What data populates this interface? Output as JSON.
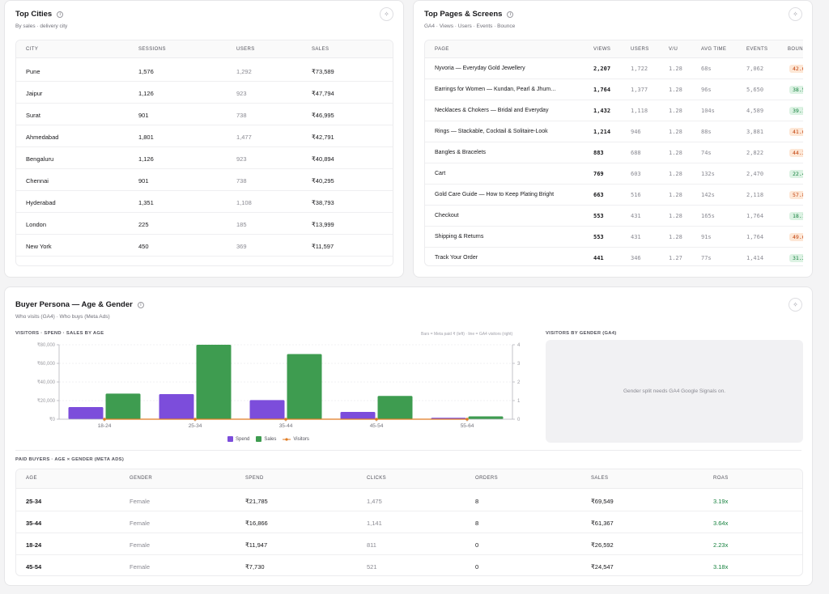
{
  "top_cities": {
    "title": "Top Cities",
    "subtitle": "By sales · delivery city",
    "columns": [
      "CITY",
      "SESSIONS",
      "USERS",
      "SALES"
    ],
    "rows": [
      {
        "city": "Pune",
        "sessions": "1,576",
        "users": "1,292",
        "sales": "₹73,589"
      },
      {
        "city": "Jaipur",
        "sessions": "1,126",
        "users": "923",
        "sales": "₹47,794"
      },
      {
        "city": "Surat",
        "sessions": "901",
        "users": "738",
        "sales": "₹46,995"
      },
      {
        "city": "Ahmedabad",
        "sessions": "1,801",
        "users": "1,477",
        "sales": "₹42,791"
      },
      {
        "city": "Bengaluru",
        "sessions": "1,126",
        "users": "923",
        "sales": "₹40,894"
      },
      {
        "city": "Chennai",
        "sessions": "901",
        "users": "738",
        "sales": "₹40,295"
      },
      {
        "city": "Hyderabad",
        "sessions": "1,351",
        "users": "1,108",
        "sales": "₹38,793"
      },
      {
        "city": "London",
        "sessions": "225",
        "users": "185",
        "sales": "₹13,999"
      },
      {
        "city": "New York",
        "sessions": "450",
        "users": "369",
        "sales": "₹11,597"
      }
    ]
  },
  "top_pages": {
    "title": "Top Pages & Screens",
    "subtitle": "GA4 · Views · Users · Events · Bounce",
    "columns": [
      "PAGE",
      "VIEWS",
      "USERS",
      "V/U",
      "AVG TIME",
      "EVENTS",
      "BOUN"
    ],
    "rows": [
      {
        "page": "Nyvoria — Everyday Gold Jewellery",
        "views": "2,207",
        "users": "1,722",
        "vu": "1.28",
        "avg": "68s",
        "events": "7,062",
        "bounce": "42.6",
        "tone": "orange"
      },
      {
        "page": "Earrings for Women — Kundan, Pearl & Jhum…",
        "views": "1,764",
        "users": "1,377",
        "vu": "1.28",
        "avg": "96s",
        "events": "5,650",
        "bounce": "38.5",
        "tone": "green"
      },
      {
        "page": "Necklaces & Chokers — Bridal and Everyday",
        "views": "1,432",
        "users": "1,118",
        "vu": "1.28",
        "avg": "104s",
        "events": "4,589",
        "bounce": "39.1",
        "tone": "green"
      },
      {
        "page": "Rings — Stackable, Cocktail & Solitaire-Look",
        "views": "1,214",
        "users": "946",
        "vu": "1.28",
        "avg": "88s",
        "events": "3,881",
        "bounce": "41.6",
        "tone": "orange"
      },
      {
        "page": "Bangles & Bracelets",
        "views": "883",
        "users": "688",
        "vu": "1.28",
        "avg": "74s",
        "events": "2,822",
        "bounce": "44.3",
        "tone": "orange"
      },
      {
        "page": "Cart",
        "views": "769",
        "users": "603",
        "vu": "1.28",
        "avg": "132s",
        "events": "2,470",
        "bounce": "22.4",
        "tone": "green"
      },
      {
        "page": "Gold Care Guide — How to Keep Plating Bright",
        "views": "663",
        "users": "516",
        "vu": "1.28",
        "avg": "142s",
        "events": "2,118",
        "bounce": "57.8",
        "tone": "orange"
      },
      {
        "page": "Checkout",
        "views": "553",
        "users": "431",
        "vu": "1.28",
        "avg": "165s",
        "events": "1,764",
        "bounce": "18.1",
        "tone": "green"
      },
      {
        "page": "Shipping & Returns",
        "views": "553",
        "users": "431",
        "vu": "1.28",
        "avg": "91s",
        "events": "1,764",
        "bounce": "49.6",
        "tone": "orange"
      },
      {
        "page": "Track Your Order",
        "views": "441",
        "users": "346",
        "vu": "1.27",
        "avg": "77s",
        "events": "1,414",
        "bounce": "31.2",
        "tone": "green"
      }
    ]
  },
  "persona": {
    "title": "Buyer Persona — Age & Gender",
    "subtitle": "Who visits (GA4) · Who buys (Meta Ads)",
    "chart_label": "VISITORS · SPEND · SALES BY AGE",
    "chart_hint": "Bars = Meta paid ₹ (left) · line = GA4 visitors (right)",
    "gender_label": "VISITORS BY GENDER (GA4)",
    "gender_message": "Gender split needs GA4 Google Signals on.",
    "paid_label": "PAID BUYERS · AGE × GENDER (META ADS)",
    "paid_columns": [
      "AGE",
      "GENDER",
      "SPEND",
      "CLICKS",
      "ORDERS",
      "SALES",
      "ROAS"
    ],
    "paid_rows": [
      {
        "age": "25-34",
        "gender": "Female",
        "spend": "₹21,785",
        "clicks": "1,475",
        "orders": "8",
        "sales": "₹69,549",
        "roas": "3.19x"
      },
      {
        "age": "35-44",
        "gender": "Female",
        "spend": "₹16,866",
        "clicks": "1,141",
        "orders": "8",
        "sales": "₹61,367",
        "roas": "3.64x"
      },
      {
        "age": "18-24",
        "gender": "Female",
        "spend": "₹11,947",
        "clicks": "811",
        "orders": "0",
        "sales": "₹26,592",
        "roas": "2.23x"
      },
      {
        "age": "45-54",
        "gender": "Female",
        "spend": "₹7,730",
        "clicks": "521",
        "orders": "0",
        "sales": "₹24,547",
        "roas": "3.18x"
      }
    ]
  },
  "chart_data": {
    "type": "bar",
    "categories": [
      "18-24",
      "25-34",
      "35-44",
      "45-54",
      "55-64"
    ],
    "series": [
      {
        "name": "Spend",
        "values": [
          13000,
          27000,
          20500,
          7800,
          1500
        ],
        "color": "#7c4ddb"
      },
      {
        "name": "Sales",
        "values": [
          27500,
          80000,
          70000,
          25000,
          3000
        ],
        "color": "#3e9c50"
      },
      {
        "name": "Visitors",
        "values": [
          0,
          0,
          0,
          0,
          0
        ],
        "color": "#e07b22",
        "axis": "right"
      }
    ],
    "yticks_left": [
      "₹0",
      "₹20,000",
      "₹40,000",
      "₹60,000",
      "₹80,000"
    ],
    "yticks_right": [
      "0",
      "1",
      "2",
      "3",
      "4"
    ],
    "ylim": [
      0,
      80000
    ],
    "ylim_right": [
      0,
      4
    ],
    "legend_position": "bottom-center"
  }
}
